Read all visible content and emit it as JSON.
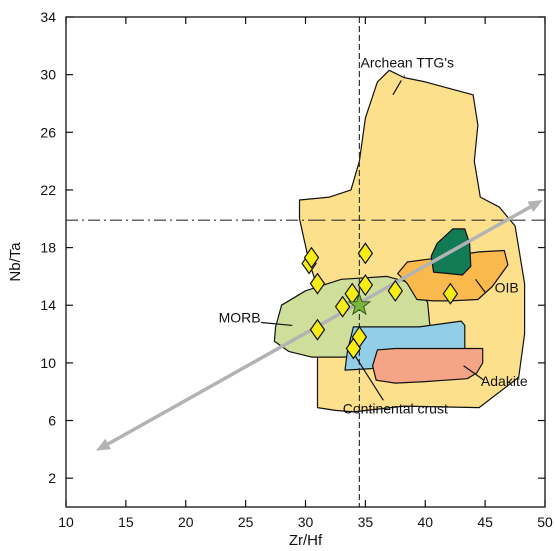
{
  "chart_data": {
    "type": "scatter",
    "xlabel": "Zr/Hf",
    "ylabel": "Nb/Ta",
    "xlim": [
      10,
      50
    ],
    "ylim": [
      0,
      34
    ],
    "x_ticks": [
      10,
      15,
      20,
      25,
      30,
      35,
      40,
      45,
      50
    ],
    "y_ticks": [
      2,
      6,
      10,
      14,
      18,
      22,
      26,
      30,
      34
    ],
    "grid": false,
    "reference_lines": [
      {
        "orientation": "vertical",
        "value": 34.5,
        "style": "dashed"
      },
      {
        "orientation": "horizontal",
        "value": 19.9,
        "style": "dash-dot",
        "x_range": [
          10,
          30.5
        ]
      },
      {
        "orientation": "horizontal",
        "value": 19.9,
        "style": "dashed",
        "x_range": [
          30.5,
          50
        ]
      }
    ],
    "trend_arrow": {
      "from": [
        12.5,
        3.9
      ],
      "to": [
        49.8,
        21.3
      ],
      "color": "#b3b3b3",
      "bidirectional": true
    },
    "regions": [
      {
        "name": "Archean TTG's",
        "label_xy": [
          38.5,
          30.5
        ],
        "fill": "#fde08b",
        "polygon": [
          [
            32.5,
            6.7
          ],
          [
            31.0,
            6.9
          ],
          [
            31.0,
            10.5
          ],
          [
            31.5,
            14.0
          ],
          [
            30.3,
            17.0
          ],
          [
            29.5,
            20.0
          ],
          [
            29.5,
            21.3
          ],
          [
            32.0,
            21.5
          ],
          [
            33.8,
            22.0
          ],
          [
            34.5,
            24.0
          ],
          [
            35.0,
            27.0
          ],
          [
            36.0,
            29.5
          ],
          [
            37.0,
            30.3
          ],
          [
            38.2,
            29.8
          ],
          [
            40.0,
            29.5
          ],
          [
            42.2,
            29.0
          ],
          [
            44.0,
            28.6
          ],
          [
            44.4,
            26.5
          ],
          [
            44.1,
            24.0
          ],
          [
            44.6,
            21.5
          ],
          [
            46.2,
            20.8
          ],
          [
            47.5,
            19.5
          ],
          [
            48.3,
            15.5
          ],
          [
            48.3,
            12.0
          ],
          [
            47.8,
            9.0
          ],
          [
            44.5,
            6.9
          ],
          [
            38.2,
            7.0
          ],
          [
            34.0,
            6.6
          ]
        ]
      },
      {
        "name": "MORB",
        "label_xy": [
          24.5,
          12.8
        ],
        "fill": "#cfdf9b",
        "polygon": [
          [
            27.5,
            12.5
          ],
          [
            28.0,
            14.0
          ],
          [
            30.0,
            15.0
          ],
          [
            33.0,
            15.8
          ],
          [
            36.8,
            16.0
          ],
          [
            39.0,
            15.5
          ],
          [
            40.2,
            14.2
          ],
          [
            40.4,
            12.5
          ],
          [
            39.0,
            11.0
          ],
          [
            36.0,
            10.5
          ],
          [
            33.0,
            10.4
          ],
          [
            30.5,
            10.4
          ],
          [
            28.6,
            10.8
          ],
          [
            27.4,
            11.5
          ]
        ]
      },
      {
        "name": "Continental crust",
        "label_xy": [
          37.5,
          6.5
        ],
        "fill": "#92cfe6",
        "polygon": [
          [
            33.3,
            9.5
          ],
          [
            33.5,
            10.8
          ],
          [
            34.0,
            12.5
          ],
          [
            39.5,
            12.5
          ],
          [
            43.0,
            12.9
          ],
          [
            43.3,
            12.6
          ],
          [
            43.3,
            10.7
          ],
          [
            42.7,
            10.4
          ],
          [
            38.8,
            10.2
          ],
          [
            35.5,
            9.6
          ]
        ]
      },
      {
        "name": "OIB",
        "label_xy": [
          46.8,
          14.9
        ],
        "fill": "#f9b94c",
        "polygon": [
          [
            38.5,
            15.5
          ],
          [
            37.7,
            16.2
          ],
          [
            38.5,
            17.0
          ],
          [
            41.2,
            17.3
          ],
          [
            44.5,
            17.7
          ],
          [
            46.6,
            17.8
          ],
          [
            46.9,
            16.8
          ],
          [
            45.6,
            15.3
          ],
          [
            44.4,
            14.4
          ],
          [
            42.1,
            14.3
          ],
          [
            40.7,
            14.3
          ],
          [
            39.3,
            14.4
          ]
        ]
      },
      {
        "name": "",
        "fill": "#127a54",
        "polygon": [
          [
            40.5,
            17.4
          ],
          [
            40.7,
            16.3
          ],
          [
            41.9,
            16.2
          ],
          [
            43.1,
            16.1
          ],
          [
            43.8,
            16.7
          ],
          [
            43.7,
            18.3
          ],
          [
            43.3,
            19.3
          ],
          [
            42.3,
            19.3
          ],
          [
            41.0,
            18.3
          ]
        ]
      },
      {
        "name": "Adakite",
        "label_xy": [
          46.6,
          8.4
        ],
        "fill": "#f5a586",
        "polygon": [
          [
            35.6,
            9.8
          ],
          [
            36.0,
            10.9
          ],
          [
            37.5,
            11.0
          ],
          [
            41.5,
            11.0
          ],
          [
            44.8,
            11.0
          ],
          [
            44.8,
            10.0
          ],
          [
            44.3,
            9.3
          ],
          [
            43.5,
            8.9
          ],
          [
            40.0,
            8.7
          ],
          [
            37.5,
            8.6
          ],
          [
            35.9,
            8.8
          ]
        ]
      }
    ],
    "annotations": [
      {
        "text": "Archean TTG's",
        "leader_from": [
          38.3,
          29.9
        ],
        "leader_to": [
          38.2,
          29.9
        ]
      },
      {
        "text": "MORB",
        "leader_from": [
          26.3,
          12.8
        ],
        "leader_to": [
          28.9,
          12.6
        ]
      },
      {
        "text": "OIB",
        "leader_from": [
          45.0,
          14.9
        ],
        "leader_to": [
          44.2,
          15.8
        ]
      },
      {
        "text": "Continental crust",
        "leader_from": [
          36.5,
          7.4
        ],
        "leader_to": [
          33.6,
          11.2
        ]
      },
      {
        "text": "Adakite",
        "leader_from": [
          44.9,
          8.8
        ],
        "leader_to": [
          43.2,
          9.8
        ]
      }
    ],
    "points": [
      {
        "x": 30.3,
        "y": 16.9
      },
      {
        "x": 30.5,
        "y": 17.3
      },
      {
        "x": 31.0,
        "y": 15.5
      },
      {
        "x": 31.0,
        "y": 12.3
      },
      {
        "x": 33.1,
        "y": 13.9
      },
      {
        "x": 33.9,
        "y": 14.8
      },
      {
        "x": 34.0,
        "y": 11.0
      },
      {
        "x": 34.5,
        "y": 11.8
      },
      {
        "x": 35.0,
        "y": 17.6
      },
      {
        "x": 35.0,
        "y": 15.4
      },
      {
        "x": 37.5,
        "y": 15.0
      },
      {
        "x": 42.1,
        "y": 14.8
      }
    ],
    "average_point": {
      "x": 34.5,
      "y": 14.0,
      "marker": "star",
      "color": "#7fb43c"
    },
    "marker": {
      "shape": "diamond",
      "fill": "#f8ec16",
      "stroke": "#111111"
    }
  }
}
